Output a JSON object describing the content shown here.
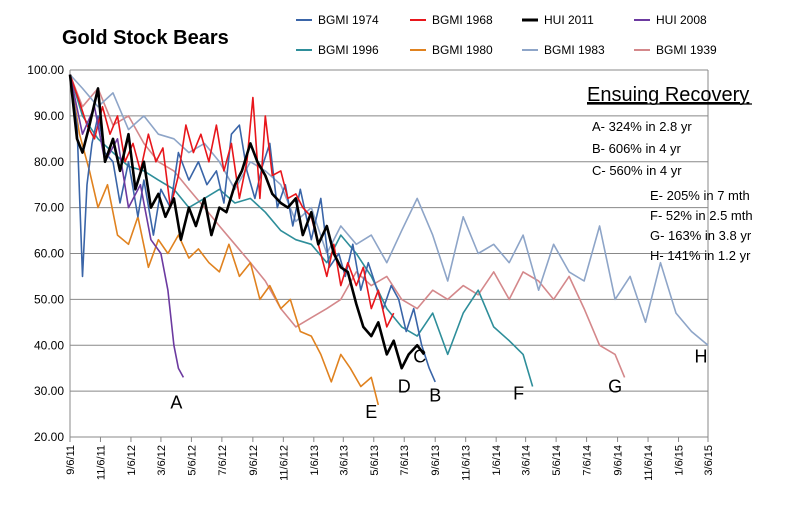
{
  "chart_data": {
    "type": "line",
    "title": "Gold Stock Bears",
    "xlabel": "",
    "ylabel": "",
    "ylim": [
      20,
      100
    ],
    "yticks": [
      "20.00",
      "30.00",
      "40.00",
      "50.00",
      "60.00",
      "70.00",
      "80.00",
      "90.00",
      "100.00"
    ],
    "xticks": [
      "9/6/11",
      "11/6/11",
      "1/6/12",
      "3/6/12",
      "5/6/12",
      "7/6/12",
      "9/6/12",
      "11/6/12",
      "1/6/13",
      "3/6/13",
      "5/6/13",
      "7/6/13",
      "9/6/13",
      "11/6/13",
      "1/6/14",
      "3/6/14",
      "5/6/14",
      "7/6/14",
      "9/6/14",
      "11/6/14",
      "1/6/15",
      "3/6/15"
    ],
    "grid": true,
    "legend_position": "top",
    "annotations": {
      "recovery_title": "Ensuing Recovery",
      "lines": [
        "A- 324% in 2.8 yr",
        "B- 606% in 4 yr",
        "C- 560% in 4 yr",
        "E- 205% in 7 mth",
        "F- 52% in 2.5 mth",
        "G- 163% in 3.8 yr",
        "H- 141% in 1.2 yr"
      ]
    },
    "point_labels": [
      {
        "label": "A",
        "x": "4/6/12",
        "y": 27.5
      },
      {
        "label": "B",
        "x": "9/6/13",
        "y": 29
      },
      {
        "label": "C",
        "x": "8/6/13",
        "y": 37.5
      },
      {
        "label": "D",
        "x": "7/6/13",
        "y": 31
      },
      {
        "label": "E",
        "x": "5/1/13",
        "y": 25.5
      },
      {
        "label": "F",
        "x": "2/20/14",
        "y": 29.5
      },
      {
        "label": "G",
        "x": "9/1/14",
        "y": 31
      },
      {
        "label": "H",
        "x": "2/20/15",
        "y": 37.5
      }
    ],
    "series": [
      {
        "name": "BGMI 1974",
        "color": "#3a65a8",
        "width": 1.6,
        "x": [
          "9/6/11",
          "9/20/11",
          "10/1/11",
          "10/10/11",
          "10/20/11",
          "11/1/11",
          "11/15/11",
          "12/1/11",
          "12/15/11",
          "1/1/12",
          "1/20/12",
          "2/1/12",
          "2/20/12",
          "3/6/12",
          "3/25/12",
          "4/10/12",
          "5/1/12",
          "5/20/12",
          "6/6/12",
          "6/25/12",
          "7/10/12",
          "7/25/12",
          "8/10/12",
          "8/25/12",
          "9/10/12",
          "9/25/12",
          "10/10/12",
          "10/25/12",
          "11/10/12",
          "11/25/12",
          "12/10/12",
          "1/1/13",
          "1/20/13",
          "2/6/13",
          "2/25/13",
          "3/10/13",
          "3/25/13",
          "4/10/13",
          "4/25/13",
          "5/10/13",
          "5/25/13",
          "6/10/13",
          "6/25/13",
          "7/10/13",
          "7/25/13",
          "8/10/13",
          "8/25/13",
          "9/6/13"
        ],
        "y": [
          99,
          88,
          55,
          75,
          84,
          90,
          82,
          80,
          71,
          80,
          68,
          76,
          64,
          74,
          70,
          82,
          76,
          80,
          75,
          78,
          71,
          86,
          88,
          78,
          72,
          79,
          84,
          70,
          75,
          66,
          74,
          63,
          72,
          57,
          60,
          55,
          62,
          52,
          58,
          53,
          48,
          53,
          50,
          43,
          48,
          40,
          35,
          32
        ]
      },
      {
        "name": "BGMI 1968",
        "color": "#e8161b",
        "width": 1.6,
        "x": [
          "9/6/11",
          "9/25/11",
          "10/10/11",
          "10/25/11",
          "11/10/11",
          "11/25/11",
          "12/10/11",
          "12/25/11",
          "1/10/12",
          "1/25/12",
          "2/10/12",
          "2/25/12",
          "3/10/12",
          "3/25/12",
          "4/10/12",
          "4/25/12",
          "5/10/12",
          "5/25/12",
          "6/10/12",
          "6/25/12",
          "7/10/12",
          "7/25/12",
          "8/10/12",
          "8/25/12",
          "9/6/12",
          "9/20/12",
          "10/1/12",
          "10/15/12",
          "11/1/12",
          "11/15/12",
          "12/1/12",
          "12/15/12",
          "1/1/13",
          "1/15/13",
          "2/1/13",
          "2/15/13",
          "3/1/13",
          "3/15/13",
          "4/1/13",
          "4/15/13",
          "5/1/13",
          "5/15/13",
          "6/1/13",
          "6/15/13"
        ],
        "y": [
          99,
          93,
          88,
          85,
          92,
          86,
          90,
          80,
          84,
          78,
          86,
          80,
          83,
          70,
          77,
          88,
          82,
          86,
          80,
          88,
          78,
          84,
          72,
          80,
          94,
          72,
          90,
          77,
          78,
          72,
          73,
          70,
          68,
          62,
          55,
          62,
          53,
          58,
          53,
          57,
          48,
          52,
          44,
          47
        ]
      },
      {
        "name": "HUI 2011",
        "color": "#000000",
        "width": 2.6,
        "x": [
          "9/6/11",
          "9/20/11",
          "10/1/11",
          "10/15/11",
          "11/1/11",
          "11/15/11",
          "12/1/11",
          "12/15/11",
          "1/1/12",
          "1/15/12",
          "2/1/12",
          "2/15/12",
          "3/1/12",
          "3/15/12",
          "4/1/12",
          "4/15/12",
          "5/1/12",
          "5/15/12",
          "6/1/12",
          "6/15/12",
          "7/1/12",
          "7/15/12",
          "8/1/12",
          "8/15/12",
          "9/1/12",
          "9/15/12",
          "10/1/12",
          "10/15/12",
          "11/1/12",
          "11/15/12",
          "12/1/12",
          "12/15/12",
          "1/1/13",
          "1/15/13",
          "2/1/13",
          "2/15/13",
          "3/1/13",
          "3/15/13",
          "4/1/13",
          "4/15/13",
          "5/1/13",
          "5/15/13",
          "6/1/13",
          "6/15/13",
          "7/1/13",
          "7/15/13",
          "8/1/13",
          "8/15/13"
        ],
        "y": [
          99,
          85,
          82,
          88,
          96,
          80,
          85,
          78,
          86,
          74,
          80,
          70,
          73,
          68,
          72,
          63,
          70,
          66,
          72,
          64,
          70,
          69,
          75,
          78,
          84,
          80,
          77,
          73,
          71,
          70,
          72,
          64,
          69,
          62,
          66,
          60,
          57,
          56,
          49,
          44,
          42,
          45,
          38,
          41,
          35,
          38,
          40,
          38
        ]
      },
      {
        "name": "HUI 2008",
        "color": "#6c3aa0",
        "width": 1.6,
        "x": [
          "9/6/11",
          "10/1/11",
          "10/25/11",
          "11/15/11",
          "12/10/11",
          "1/1/12",
          "1/25/12",
          "2/15/12",
          "3/6/12",
          "3/20/12",
          "4/1/12",
          "4/10/12",
          "4/20/12"
        ],
        "y": [
          99,
          86,
          92,
          80,
          85,
          70,
          75,
          63,
          60,
          52,
          40,
          35,
          33
        ]
      },
      {
        "name": "BGMI 1996",
        "color": "#2e8e9a",
        "width": 1.6,
        "x": [
          "9/6/11",
          "10/1/11",
          "11/1/11",
          "12/1/11",
          "1/1/12",
          "2/1/12",
          "3/1/12",
          "4/1/12",
          "5/1/12",
          "6/1/12",
          "7/1/12",
          "8/1/12",
          "9/1/12",
          "10/1/12",
          "11/1/12",
          "12/1/12",
          "1/1/13",
          "2/1/13",
          "3/1/13",
          "4/1/13",
          "5/1/13",
          "6/1/13",
          "7/1/13",
          "8/1/13",
          "9/1/13",
          "10/1/13",
          "11/1/13",
          "12/1/13",
          "1/1/14",
          "2/1/14",
          "3/1/14",
          "3/20/14"
        ],
        "y": [
          99,
          90,
          85,
          82,
          79,
          78,
          76,
          74,
          70,
          72,
          74,
          71,
          72,
          69,
          65,
          63,
          62,
          58,
          64,
          60,
          55,
          48,
          44,
          42,
          47,
          38,
          47,
          52,
          44,
          41,
          38,
          31
        ]
      },
      {
        "name": "BGMI 1980",
        "color": "#e0821f",
        "width": 1.6,
        "x": [
          "9/6/11",
          "9/25/11",
          "10/15/11",
          "11/1/11",
          "11/20/11",
          "12/10/11",
          "1/1/12",
          "1/20/12",
          "2/10/12",
          "3/1/12",
          "3/20/12",
          "4/10/12",
          "5/1/12",
          "5/20/12",
          "6/10/12",
          "7/1/12",
          "7/20/12",
          "8/10/12",
          "9/1/12",
          "9/20/12",
          "10/10/12",
          "11/1/12",
          "11/20/12",
          "12/10/12",
          "1/1/13",
          "1/20/13",
          "2/10/13",
          "3/1/13",
          "3/20/13",
          "4/10/13",
          "5/1/13",
          "5/15/13"
        ],
        "y": [
          99,
          86,
          78,
          70,
          75,
          64,
          62,
          68,
          57,
          63,
          60,
          64,
          59,
          61,
          58,
          56,
          62,
          55,
          58,
          50,
          53,
          48,
          50,
          43,
          42,
          38,
          32,
          38,
          35,
          31,
          33,
          27
        ]
      },
      {
        "name": "BGMI 1983",
        "color": "#8ea5c8",
        "width": 1.6,
        "x": [
          "9/6/11",
          "10/1/11",
          "11/1/11",
          "12/1/11",
          "1/1/12",
          "2/1/12",
          "3/1/12",
          "4/1/12",
          "5/1/12",
          "6/1/12",
          "7/1/12",
          "8/1/12",
          "9/1/12",
          "10/1/12",
          "11/1/12",
          "12/1/12",
          "1/1/13",
          "2/1/13",
          "3/1/13",
          "4/1/13",
          "5/1/13",
          "6/1/13",
          "7/1/13",
          "8/1/13",
          "9/1/13",
          "10/1/13",
          "11/1/13",
          "12/1/13",
          "1/1/14",
          "2/1/14",
          "3/1/14",
          "4/1/14",
          "5/1/14",
          "6/1/14",
          "7/1/14",
          "8/1/14",
          "9/1/14",
          "10/1/14",
          "11/1/14",
          "12/1/14",
          "1/1/15",
          "2/1/15",
          "3/6/15"
        ],
        "y": [
          99,
          96,
          92,
          95,
          87,
          90,
          86,
          85,
          82,
          84,
          80,
          74,
          80,
          78,
          75,
          67,
          70,
          60,
          66,
          62,
          64,
          58,
          65,
          72,
          64,
          54,
          68,
          60,
          62,
          58,
          64,
          52,
          62,
          56,
          54,
          66,
          50,
          55,
          45,
          58,
          47,
          43,
          40
        ]
      },
      {
        "name": "BGMI 1939",
        "color": "#d4888b",
        "width": 1.6,
        "x": [
          "9/6/11",
          "10/1/11",
          "11/1/11",
          "12/1/11",
          "1/1/12",
          "2/1/12",
          "3/1/12",
          "4/1/12",
          "5/1/12",
          "6/1/12",
          "7/1/12",
          "8/1/12",
          "9/1/12",
          "10/1/12",
          "11/1/12",
          "12/1/12",
          "1/1/13",
          "2/1/13",
          "3/1/13",
          "4/1/13",
          "5/1/13",
          "6/1/13",
          "7/1/13",
          "8/1/13",
          "9/1/13",
          "10/1/13",
          "11/1/13",
          "12/1/13",
          "1/1/14",
          "2/1/14",
          "3/1/14",
          "4/1/14",
          "5/1/14",
          "6/1/14",
          "7/1/14",
          "8/1/14",
          "9/1/14",
          "9/20/14"
        ],
        "y": [
          99,
          92,
          96,
          88,
          90,
          84,
          80,
          78,
          74,
          70,
          66,
          62,
          58,
          54,
          48,
          44,
          46,
          48,
          50,
          56,
          53,
          55,
          50,
          48,
          52,
          50,
          53,
          51,
          56,
          50,
          56,
          54,
          50,
          55,
          48,
          40,
          38,
          33
        ]
      }
    ]
  }
}
